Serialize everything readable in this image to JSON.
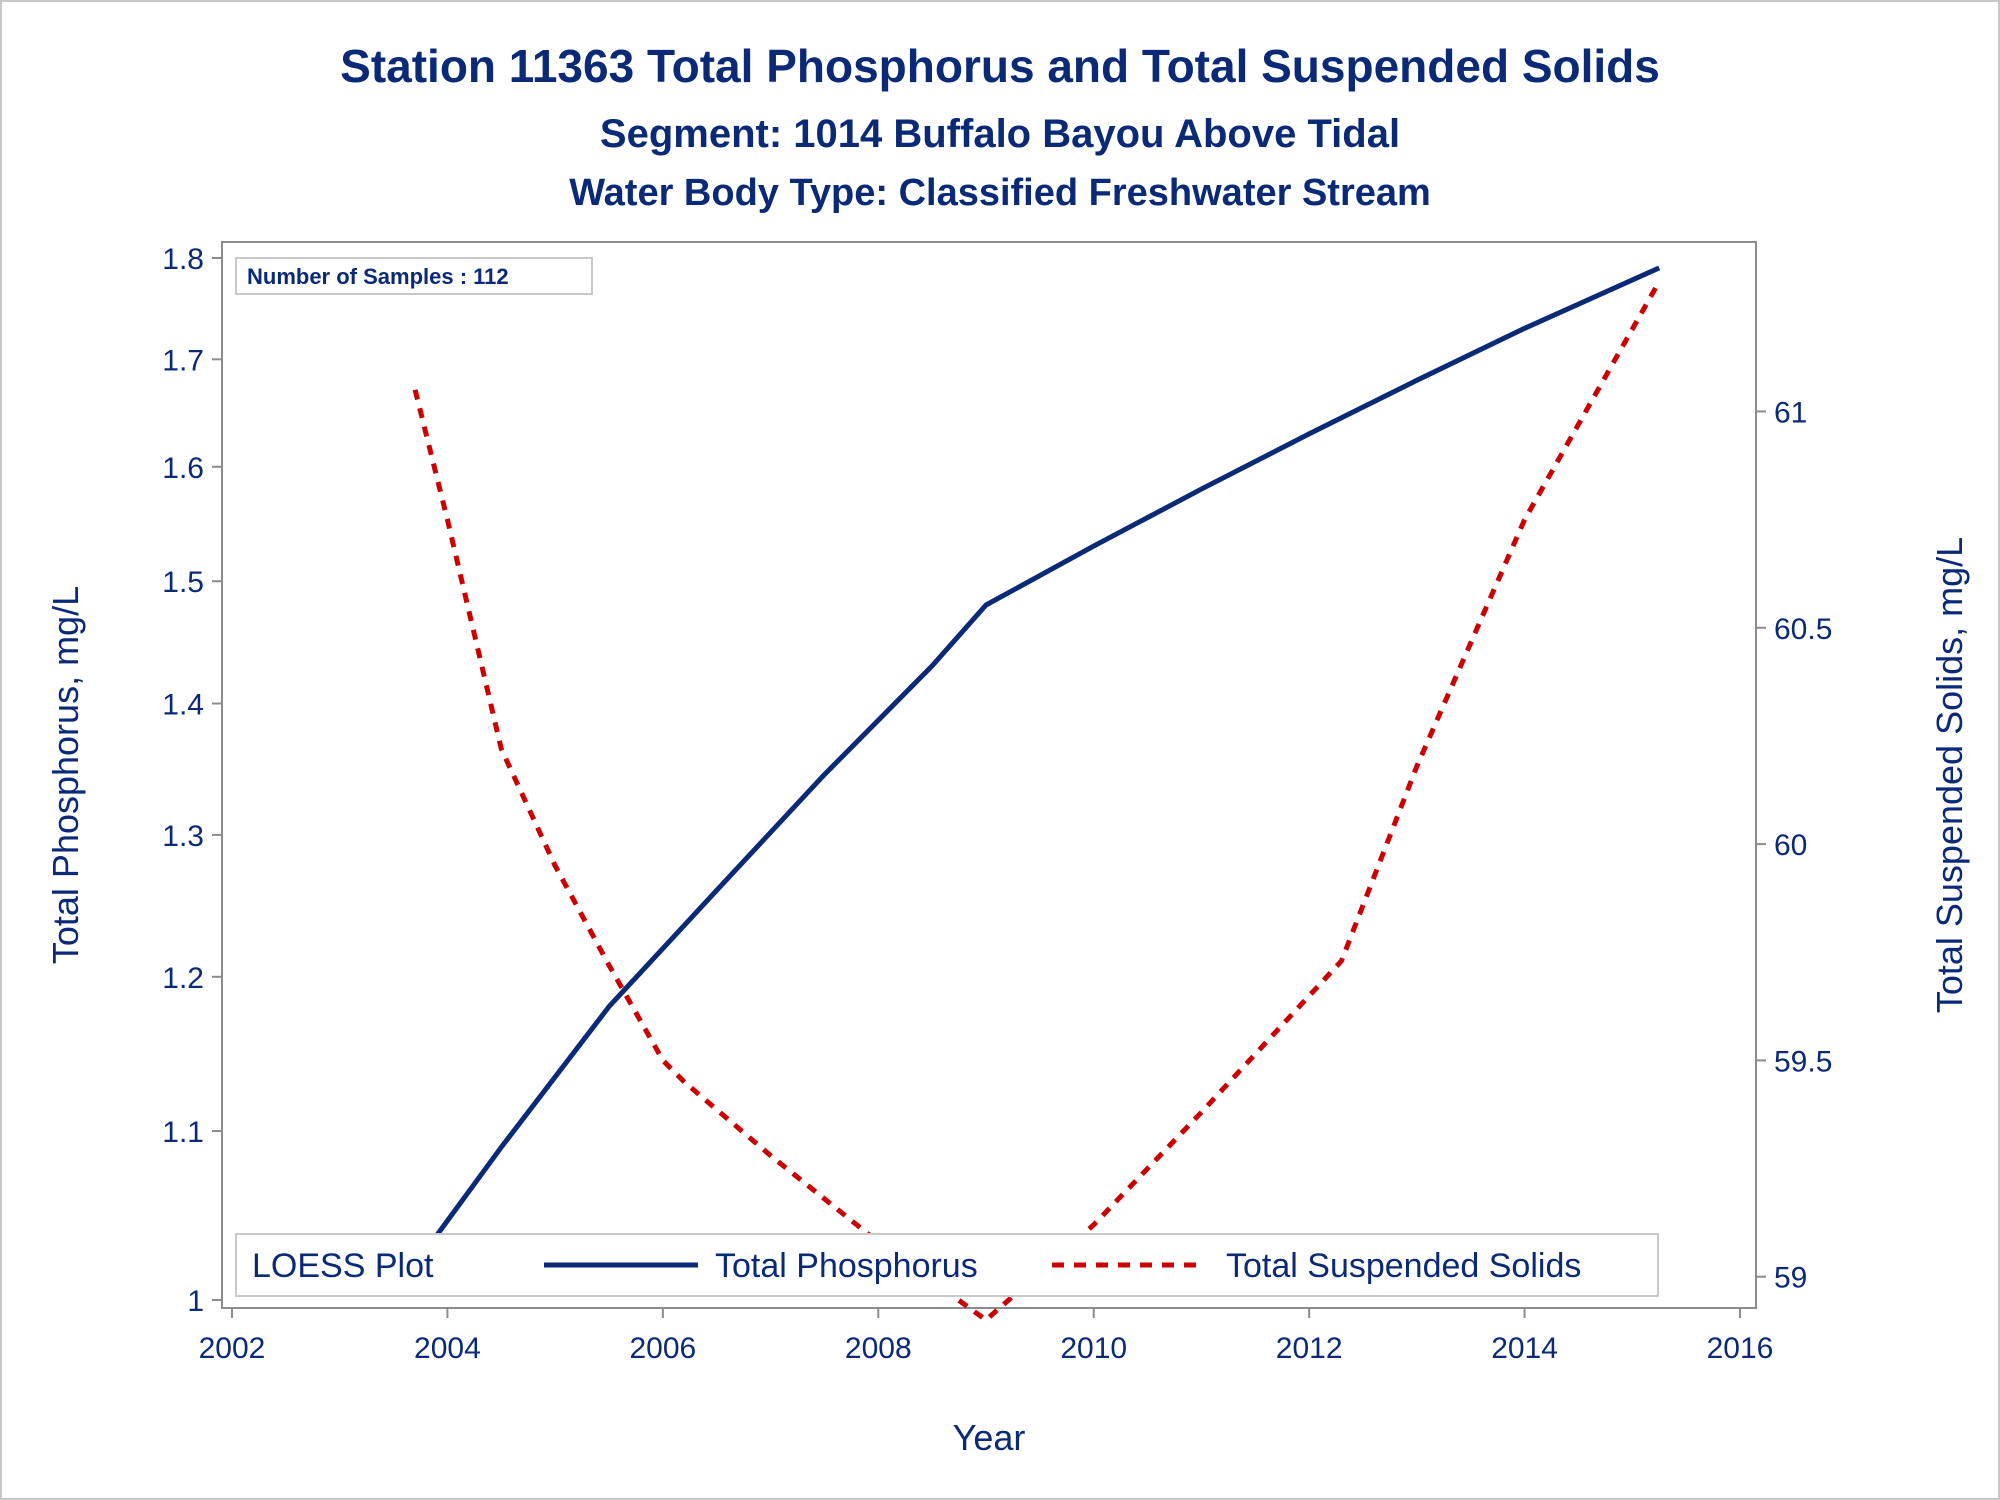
{
  "chart_data": {
    "type": "line",
    "title": "Station 11363  Total Phosphorus and Total Suspended Solids",
    "subtitle": "Segment: 1014  Buffalo Bayou Above Tidal",
    "subtitle2": "Water Body Type: Classified Freshwater Stream",
    "xlabel": "Year",
    "ylabel": "Total Phosphorus, mg/L",
    "y2label": "Total Suspended Solids, mg/L",
    "xlim": [
      2002,
      2016
    ],
    "x_ticks": [
      2002,
      2004,
      2006,
      2008,
      2010,
      2012,
      2014,
      2016
    ],
    "ylim": [
      1.0,
      1.8
    ],
    "y_ticks": [
      1,
      1.1,
      1.2,
      1.3,
      1.4,
      1.5,
      1.6,
      1.7,
      1.8
    ],
    "y_scale": "log",
    "y2lim": [
      58.9,
      61.35
    ],
    "y2_ticks": [
      59,
      59.5,
      60,
      60.5,
      61
    ],
    "annotation": "Number of Samples : 112",
    "legend": {
      "title": "LOESS Plot",
      "position": "bottom-inside"
    },
    "series": [
      {
        "name": "Total Phosphorus",
        "axis": "left",
        "color": "#0a2a78",
        "style": "solid",
        "x": [
          2003.7,
          2004.5,
          2005.5,
          2006.5,
          2007.5,
          2008.5,
          2009.0,
          2010.0,
          2011.0,
          2012.0,
          2013.0,
          2014.0,
          2015.25
        ],
        "values": [
          1.02,
          1.09,
          1.18,
          1.26,
          1.345,
          1.43,
          1.48,
          1.53,
          1.58,
          1.63,
          1.68,
          1.73,
          1.79
        ]
      },
      {
        "name": "Total Suspended Solids",
        "axis": "right",
        "color": "#cc0000",
        "style": "dashed",
        "x": [
          2003.7,
          2004.0,
          2004.5,
          2005.0,
          2005.5,
          2006.0,
          2006.2,
          2007.0,
          2008.0,
          2009.0,
          2010.0,
          2011.0,
          2012.3,
          2013.0,
          2014.0,
          2015.25
        ],
        "values": [
          61.05,
          60.75,
          60.22,
          59.95,
          59.72,
          59.5,
          59.45,
          59.28,
          59.08,
          58.9,
          59.12,
          59.38,
          59.73,
          60.18,
          60.75,
          61.3
        ]
      }
    ]
  }
}
